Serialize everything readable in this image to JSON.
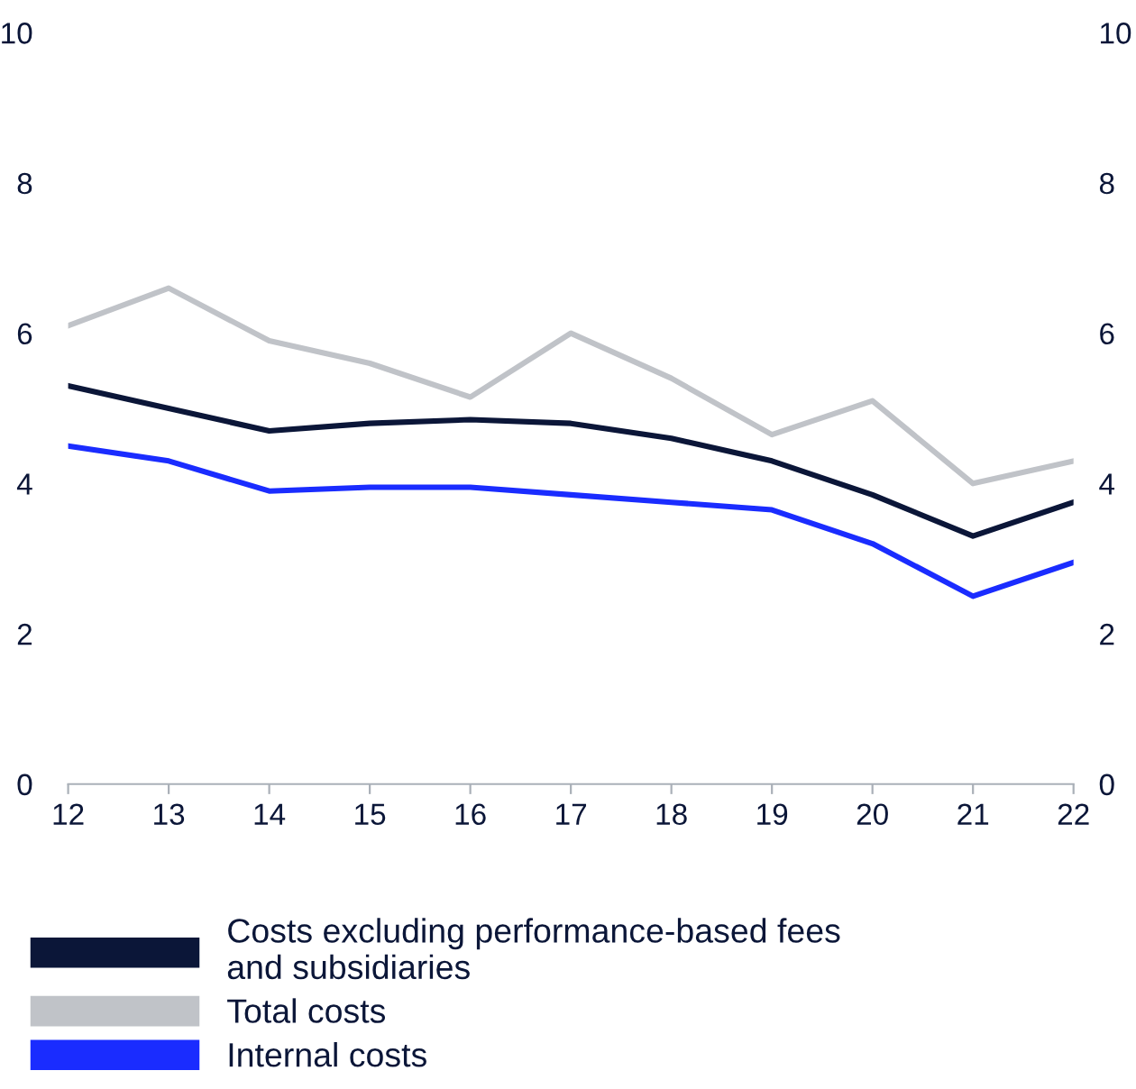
{
  "chart_data": {
    "type": "line",
    "categories": [
      "12",
      "13",
      "14",
      "15",
      "16",
      "17",
      "18",
      "19",
      "20",
      "21",
      "22"
    ],
    "series": [
      {
        "name": "Costs excluding performance-based fees\nand subsidiaries",
        "color": "#0b1638",
        "values": [
          5.3,
          5.0,
          4.7,
          4.8,
          4.85,
          4.8,
          4.6,
          4.3,
          3.85,
          3.3,
          3.75
        ]
      },
      {
        "name": "Total costs",
        "color": "#c0c3c8",
        "values": [
          6.1,
          6.6,
          5.9,
          5.6,
          5.15,
          6.0,
          5.4,
          4.65,
          5.1,
          4.0,
          4.3
        ]
      },
      {
        "name": "Internal costs",
        "color": "#1a2cff",
        "values": [
          4.5,
          4.3,
          3.9,
          3.95,
          3.95,
          3.85,
          3.75,
          3.65,
          3.2,
          2.5,
          2.95
        ]
      }
    ],
    "ylim": [
      0,
      10
    ],
    "yticks": [
      0,
      2,
      4,
      6,
      8,
      10
    ],
    "y2lim": [
      0,
      10
    ],
    "y2ticks": [
      0,
      2,
      4,
      6,
      8,
      10
    ],
    "grid": false,
    "legend": "bottom",
    "marker": "none",
    "line_style": "solid"
  }
}
